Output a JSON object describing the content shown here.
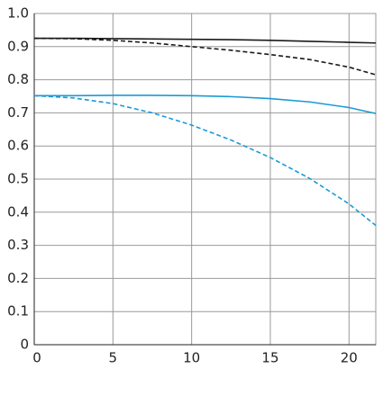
{
  "chart_data": {
    "type": "line",
    "x": [
      0,
      2.5,
      5,
      7.5,
      10,
      12.5,
      15,
      17.5,
      20,
      21.7
    ],
    "series": [
      {
        "color": "#1a1a1a",
        "dashed": false,
        "values": [
          0.925,
          0.925,
          0.924,
          0.923,
          0.922,
          0.921,
          0.919,
          0.916,
          0.913,
          0.911
        ]
      },
      {
        "color": "#1a1a1a",
        "dashed": true,
        "values": [
          0.925,
          0.924,
          0.919,
          0.911,
          0.9,
          0.889,
          0.876,
          0.861,
          0.838,
          0.815
        ]
      },
      {
        "color": "#1a9ad6",
        "dashed": false,
        "values": [
          0.752,
          0.752,
          0.753,
          0.753,
          0.752,
          0.749,
          0.743,
          0.733,
          0.716,
          0.698
        ]
      },
      {
        "color": "#1a9ad6",
        "dashed": true,
        "values": [
          0.752,
          0.745,
          0.728,
          0.7,
          0.663,
          0.618,
          0.565,
          0.502,
          0.425,
          0.36
        ]
      }
    ],
    "xlim": [
      0,
      21.7
    ],
    "xticks": [
      0,
      5,
      10,
      15,
      20
    ],
    "ylim": [
      0,
      1
    ],
    "yticks": [
      0,
      0.1,
      0.2,
      0.3,
      0.4,
      0.5,
      0.6,
      0.7,
      0.8,
      0.9,
      {
        "value": 1,
        "label": "1.0"
      }
    ],
    "grid": true
  }
}
